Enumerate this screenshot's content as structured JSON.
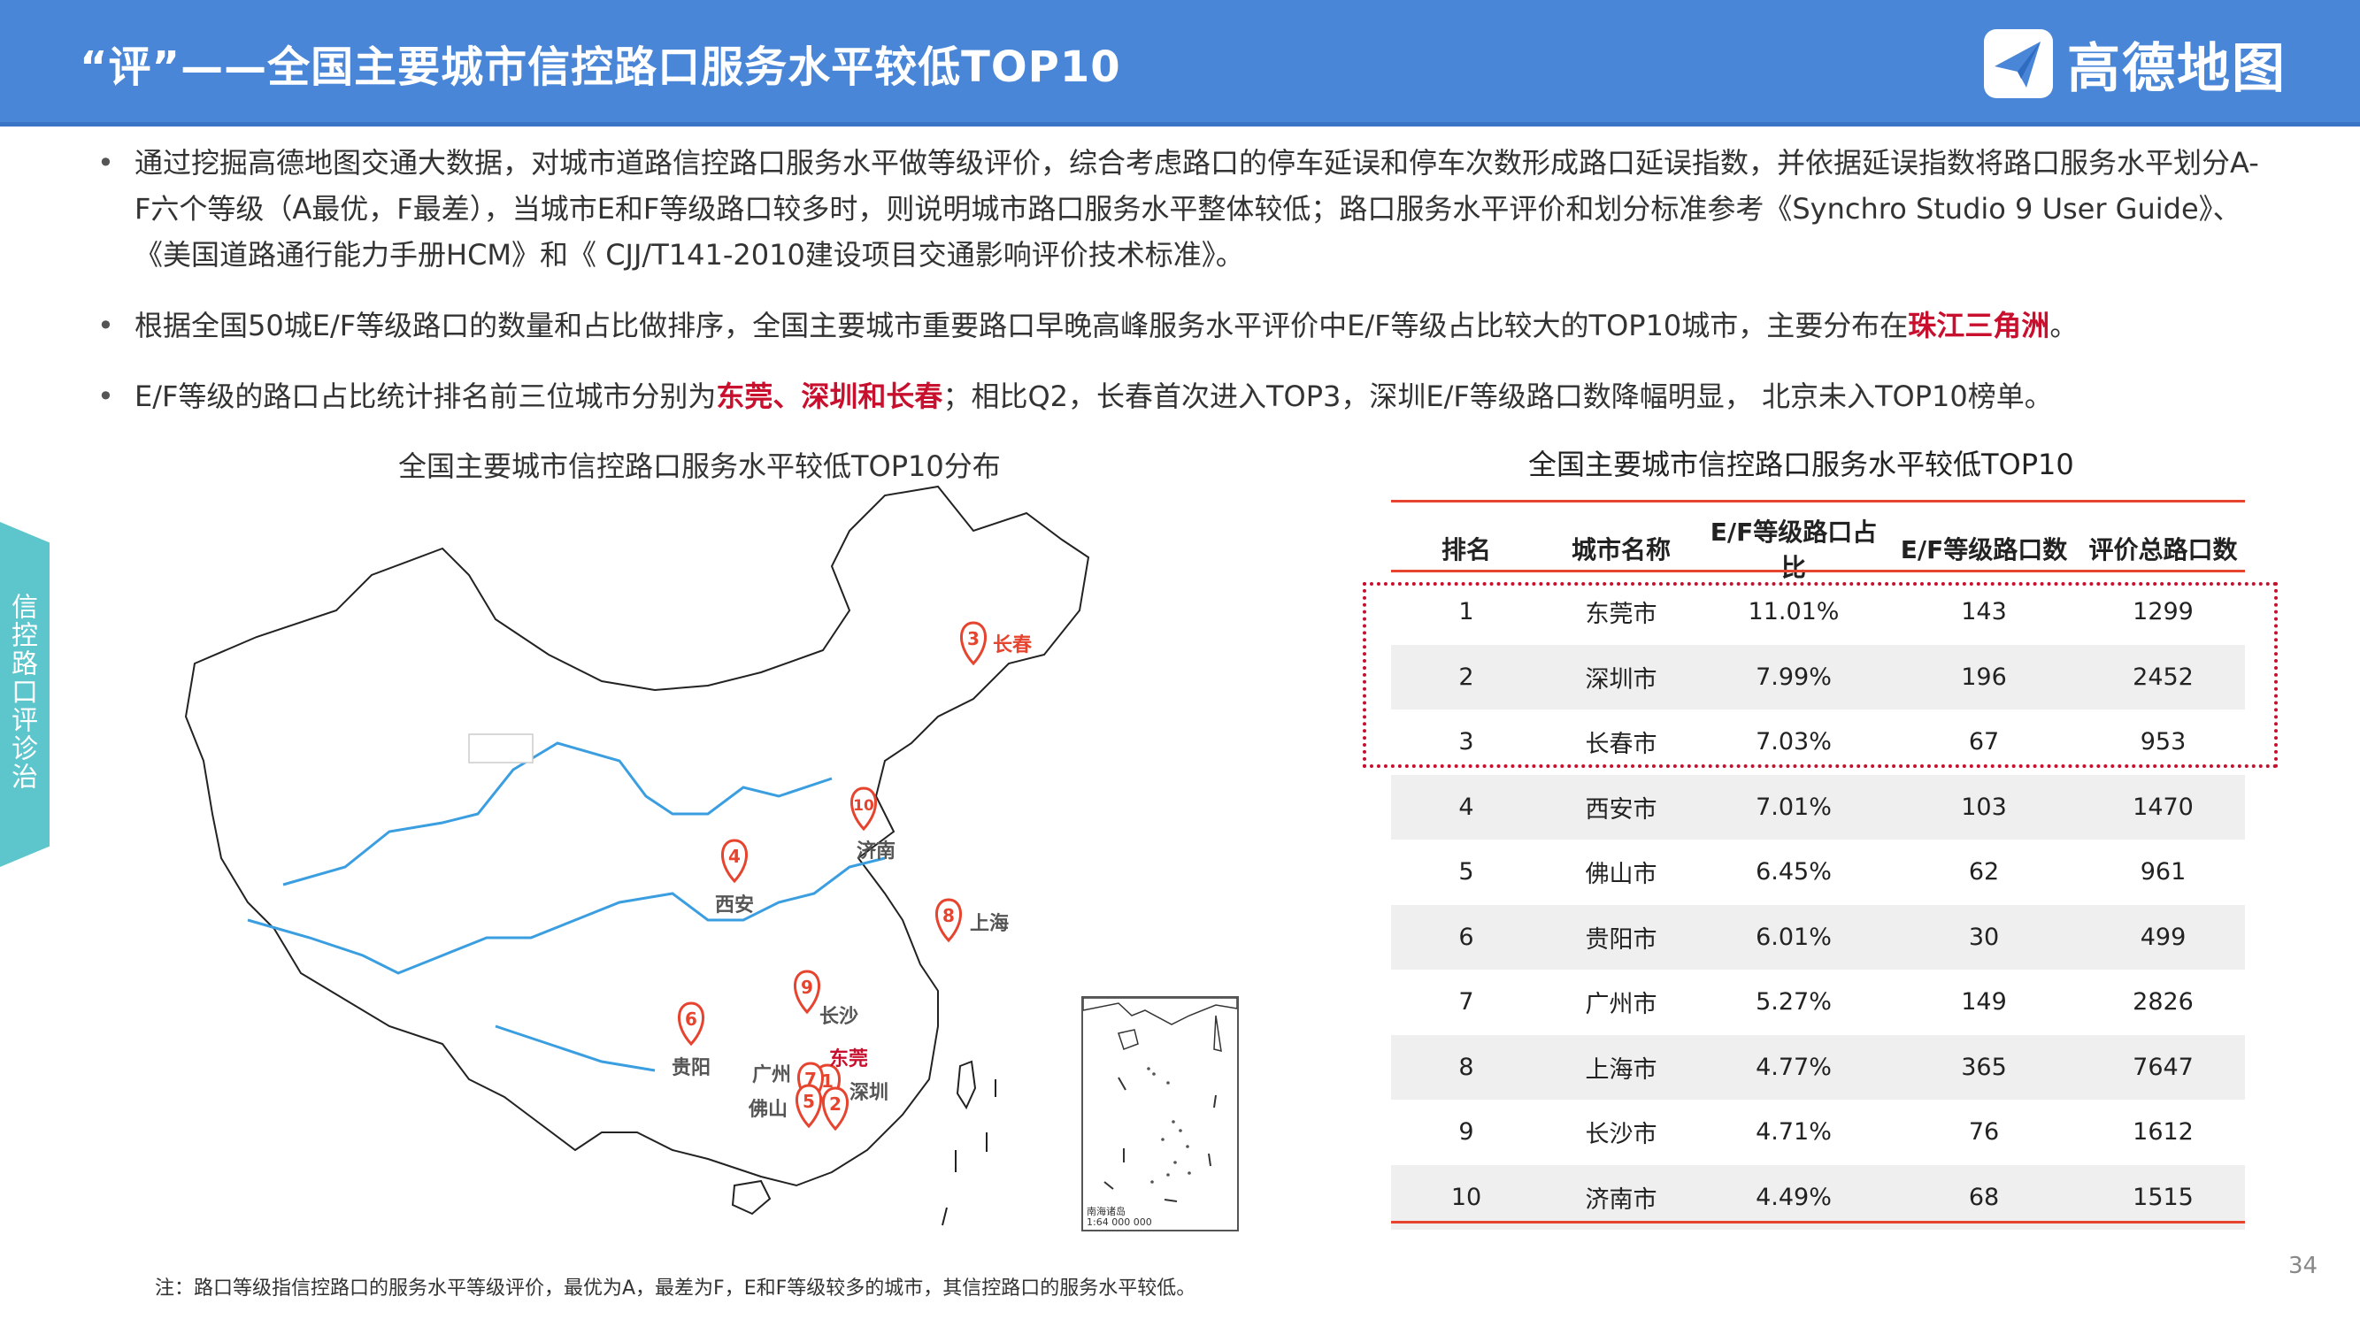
{
  "header": {
    "title": "“评”——全国主要城市信控路口服务水平较低TOP10",
    "logo_text": "高德地图"
  },
  "bullets": [
    {
      "pre": "通过挖掘高德地图交通大数据，对城市道路信控路口服务水平做等级评价，综合考虑路口的停车延误和停车次数形成路口延误指数，并依据延误指数将路口服务水平划分A-F六个等级（A最优，F最差），当城市E和F等级路口较多时，则说明城市路口服务水平整体较低；路口服务水平评价和划分标准参考《Synchro Studio 9 User Guide》、《美国道路通行能力手册HCM》和《 CJJ/T141-2010建设项目交通影响评价技术标准》。"
    },
    {
      "pre": "根据全国50城E/F等级路口的数量和占比做排序，全国主要城市重要路口早晚高峰服务水平评价中E/F等级占比较大的TOP10城市，主要分布在",
      "highlight": "珠江三角洲",
      "post": "。"
    },
    {
      "pre": "E/F等级的路口占比统计排名前三位城市分别为",
      "highlight": "东莞、深圳和长春",
      "post": "；相比Q2，长春首次进入TOP3，深圳E/F等级路口数降幅明显， 北京未入TOP10榜单。"
    }
  ],
  "side_tab": "信控路口评诊治",
  "map": {
    "title": "全国主要城市信控路口服务水平较低TOP10分布",
    "pins": [
      {
        "rank": "3",
        "city": "长春"
      },
      {
        "rank": "10",
        "city": "济南"
      },
      {
        "rank": "4",
        "city": "西安"
      },
      {
        "rank": "8",
        "city": "上海"
      },
      {
        "rank": "9",
        "city": "长沙"
      },
      {
        "rank": "6",
        "city": "贵阳"
      },
      {
        "rank": "1",
        "city": "东莞"
      },
      {
        "rank": "7",
        "city": "广州"
      },
      {
        "rank": "5",
        "city": "佛山"
      },
      {
        "rank": "2",
        "city": "深圳"
      }
    ],
    "inset_label_1": "南海诸岛",
    "inset_label_2": "1:64 000 000"
  },
  "table": {
    "title": "全国主要城市信控路口服务水平较低TOP10",
    "headers": [
      "排名",
      "城市名称",
      "E/F等级路口占比",
      "E/F等级路口数",
      "评价总路口数"
    ],
    "rows": [
      [
        "1",
        "东莞市",
        "11.01%",
        "143",
        "1299"
      ],
      [
        "2",
        "深圳市",
        "7.99%",
        "196",
        "2452"
      ],
      [
        "3",
        "长春市",
        "7.03%",
        "67",
        "953"
      ],
      [
        "4",
        "西安市",
        "7.01%",
        "103",
        "1470"
      ],
      [
        "5",
        "佛山市",
        "6.45%",
        "62",
        "961"
      ],
      [
        "6",
        "贵阳市",
        "6.01%",
        "30",
        "499"
      ],
      [
        "7",
        "广州市",
        "5.27%",
        "149",
        "2826"
      ],
      [
        "8",
        "上海市",
        "4.77%",
        "365",
        "7647"
      ],
      [
        "9",
        "长沙市",
        "4.71%",
        "76",
        "1612"
      ],
      [
        "10",
        "济南市",
        "4.49%",
        "68",
        "1515"
      ]
    ]
  },
  "footnote": "注：路口等级指信控路口的服务水平等级评价，最优为A，最差为F，E和F等级较多的城市，其信控路口的服务水平较低。",
  "page_number": "34",
  "colors": {
    "header_blue": "#4a86d8",
    "accent_red": "#c8102e",
    "table_line": "#e6442f",
    "side_tab": "#5cc6cc"
  }
}
